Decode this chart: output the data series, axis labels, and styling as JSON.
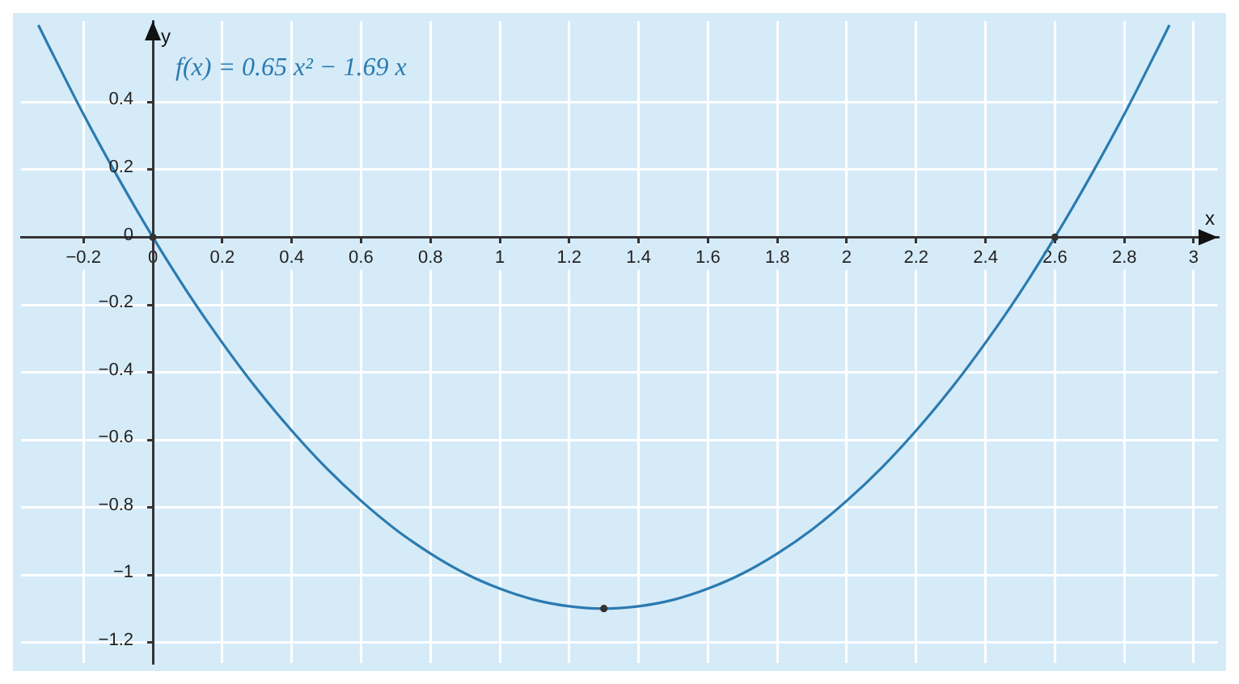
{
  "chart_data": {
    "type": "line",
    "xlabel": "x",
    "ylabel": "y",
    "xlim": [
      -0.38,
      3.07
    ],
    "ylim": [
      -1.26,
      0.64
    ],
    "xticks": [
      {
        "value": -0.2,
        "label": "−0.2"
      },
      0,
      0.2,
      0.4,
      0.6,
      0.8,
      1,
      1.2,
      1.4,
      1.6,
      1.8,
      2,
      2.2,
      2.4,
      2.6,
      2.8,
      3
    ],
    "yticks": [
      {
        "value": -1.2,
        "label": "−1.2"
      },
      {
        "value": -1,
        "label": "−1"
      },
      {
        "value": -0.8,
        "label": "−0.8"
      },
      {
        "value": -0.6,
        "label": "−0.6"
      },
      {
        "value": -0.4,
        "label": "−0.4"
      },
      {
        "value": -0.2,
        "label": "−0.2"
      },
      0,
      0.2,
      0.4
    ],
    "grid": true,
    "legend": false,
    "series": [
      {
        "name": "f(x) = 0.65 x² − 1.69 x",
        "color": "#2b7bb0",
        "marker": "none",
        "line_style": "solid",
        "x": [
          -0.33,
          -0.3,
          -0.2,
          -0.1,
          0,
          0.1,
          0.2,
          0.3,
          0.4,
          0.5,
          0.6,
          0.7,
          0.8,
          0.9,
          1.0,
          1.1,
          1.2,
          1.3,
          1.4,
          1.5,
          1.6,
          1.7,
          1.8,
          1.9,
          2.0,
          2.1,
          2.2,
          2.3,
          2.4,
          2.5,
          2.6,
          2.7,
          2.8,
          2.9,
          2.93
        ],
        "values": [
          0.628,
          0.566,
          0.364,
          0.176,
          0,
          -0.163,
          -0.312,
          -0.449,
          -0.572,
          -0.683,
          -0.78,
          -0.865,
          -0.936,
          -0.995,
          -1.04,
          -1.073,
          -1.092,
          -1.099,
          -1.092,
          -1.073,
          -1.04,
          -0.995,
          -0.936,
          -0.865,
          -0.78,
          -0.683,
          -0.572,
          -0.449,
          -0.312,
          -0.163,
          0,
          0.176,
          0.364,
          0.566,
          0.628
        ]
      },
      {
        "type": "scatter",
        "color": "#333333",
        "marker": "circle",
        "x": [
          0,
          1.3,
          2.6
        ],
        "values": [
          0,
          -1.099,
          0
        ]
      }
    ]
  }
}
